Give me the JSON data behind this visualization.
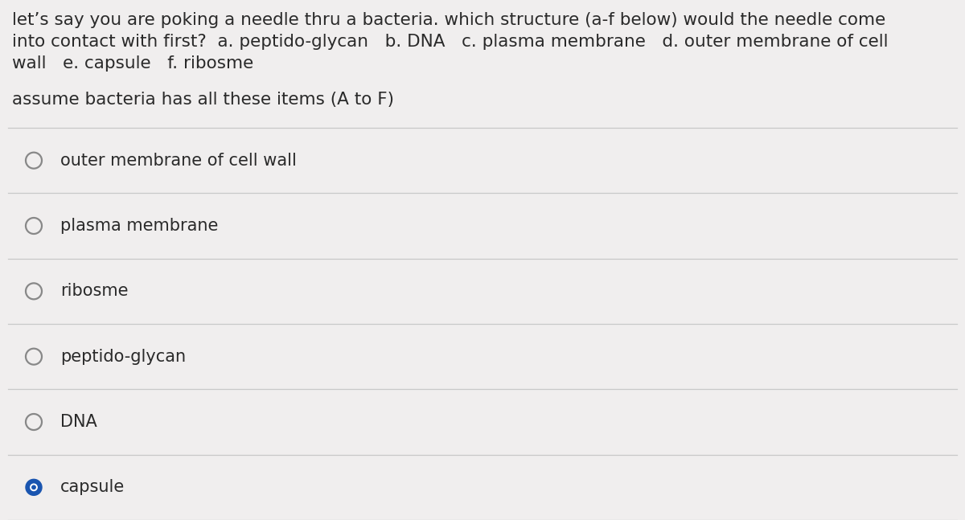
{
  "bg_color": "#f0eeee",
  "question_text_lines": [
    "let’s say you are poking a needle thru a bacteria. which structure (a-f below) would the needle come",
    "into contact with first?  a. peptido-glycan   b. DNA   c. plasma membrane   d. outer membrane of cell",
    "wall   e. capsule   f. ribosme"
  ],
  "subtext": "assume bacteria has all these items (A to F)",
  "options": [
    {
      "label": "outer membrane of cell wall",
      "selected": false
    },
    {
      "label": "plasma membrane",
      "selected": false
    },
    {
      "label": "ribosme",
      "selected": false
    },
    {
      "label": "peptido-glycan",
      "selected": false
    },
    {
      "label": "DNA",
      "selected": false
    },
    {
      "label": "capsule",
      "selected": true
    }
  ],
  "text_color": "#2a2a2a",
  "line_color": "#c8c8c8",
  "circle_color_empty": "#888888",
  "circle_fill_selected": "#1a55b0",
  "font_size_question": 15.5,
  "font_size_subtext": 15.5,
  "font_size_options": 15.0,
  "fig_width": 12.0,
  "fig_height": 6.47,
  "dpi": 100
}
